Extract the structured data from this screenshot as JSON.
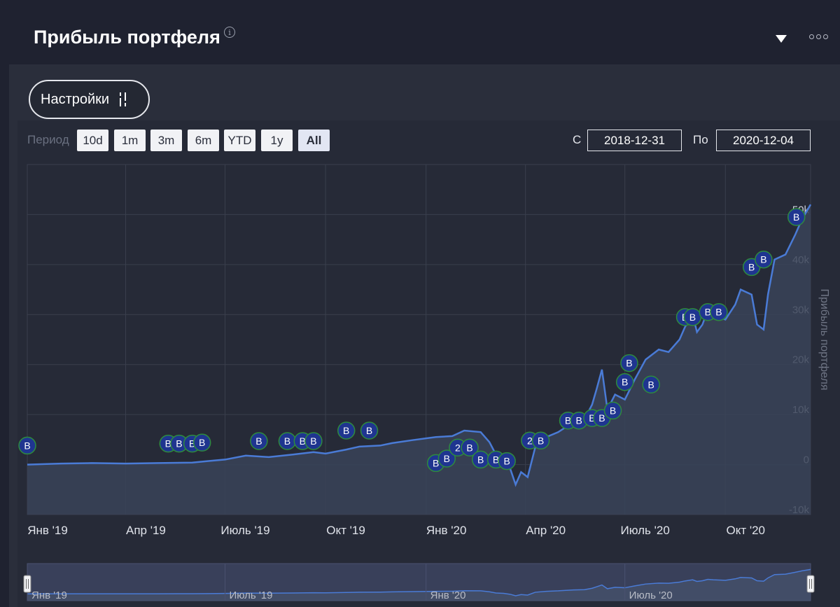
{
  "header": {
    "title": "Прибыль портфеля",
    "info_icon": "info-icon",
    "dropdown_icon": "dropdown-icon",
    "more_icon": "more-icon"
  },
  "settings": {
    "label": "Настройки",
    "icon": "sliders-icon"
  },
  "period": {
    "label": "Период",
    "buttons": [
      "10d",
      "1m",
      "3m",
      "6m",
      "YTD",
      "1y",
      "All"
    ],
    "active": "All"
  },
  "range": {
    "from_label": "С",
    "from": "2018-12-31",
    "to_label": "По",
    "to": "2020-12-04"
  },
  "colors": {
    "line": "#4a7bd6",
    "area": "#3a4358",
    "marker": "#1f3590",
    "marker_border": "#2e8b3e"
  },
  "chart_data": {
    "type": "area",
    "ylabel": "Прибыль портфеля",
    "ylim": [
      -10000,
      60000
    ],
    "yticks": [
      -10000,
      0,
      10000,
      20000,
      30000,
      40000,
      50000
    ],
    "ytick_labels": [
      "-10k",
      "0",
      "10k",
      "20k",
      "30k",
      "40k",
      "50k"
    ],
    "xlim": [
      "2019-01-01",
      "2020-12-18"
    ],
    "xticks": [
      "2019-01-01",
      "2019-04-01",
      "2019-07-01",
      "2019-10-01",
      "2020-01-01",
      "2020-04-01",
      "2020-07-01",
      "2020-10-01"
    ],
    "xtick_labels": [
      "Янв '19",
      "Апр '19",
      "Июль '19",
      "Окт '19",
      "Янв '20",
      "Апр '20",
      "Июль '20",
      "Окт '20"
    ],
    "navigator_labels": [
      "Янв '19",
      "Июль '19",
      "Янв '20",
      "Июль '20"
    ],
    "grid": true,
    "series": [
      {
        "x": [
          "2019-01-01",
          "2019-02-01",
          "2019-03-01",
          "2019-04-01",
          "2019-05-01",
          "2019-06-01",
          "2019-06-15",
          "2019-07-01",
          "2019-07-20",
          "2019-08-10",
          "2019-09-01",
          "2019-09-20",
          "2019-10-01",
          "2019-10-20",
          "2019-11-01",
          "2019-11-20",
          "2019-12-01",
          "2019-12-20",
          "2020-01-10",
          "2020-01-25",
          "2020-02-05",
          "2020-02-20",
          "2020-02-28",
          "2020-03-05",
          "2020-03-12",
          "2020-03-18",
          "2020-03-23",
          "2020-03-28",
          "2020-04-03",
          "2020-04-10",
          "2020-04-20",
          "2020-05-01",
          "2020-05-15",
          "2020-05-25",
          "2020-06-01",
          "2020-06-05",
          "2020-06-10",
          "2020-06-15",
          "2020-06-22",
          "2020-07-01",
          "2020-07-10",
          "2020-07-20",
          "2020-08-01",
          "2020-08-10",
          "2020-08-20",
          "2020-08-25",
          "2020-09-01",
          "2020-09-05",
          "2020-09-10",
          "2020-09-15",
          "2020-09-20",
          "2020-10-01",
          "2020-10-10",
          "2020-10-15",
          "2020-10-25",
          "2020-10-30",
          "2020-11-05",
          "2020-11-09",
          "2020-11-15",
          "2020-11-25",
          "2020-12-04",
          "2020-12-10",
          "2020-12-18"
        ],
        "values": [
          0,
          200,
          300,
          200,
          300,
          400,
          700,
          1000,
          1800,
          1500,
          2000,
          2500,
          2200,
          3000,
          3600,
          3800,
          4300,
          4900,
          5500,
          5700,
          6800,
          6500,
          4500,
          2000,
          1200,
          -800,
          -4000,
          -1500,
          -2500,
          3500,
          5500,
          6500,
          8500,
          9000,
          12000,
          15000,
          19000,
          11000,
          14000,
          13000,
          17000,
          21000,
          23000,
          22500,
          25000,
          27500,
          30000,
          26500,
          28000,
          31000,
          30000,
          29000,
          32000,
          35000,
          34000,
          28000,
          27000,
          34000,
          41000,
          42000,
          46000,
          49000,
          52000
        ]
      }
    ],
    "annotations": [
      {
        "label": "B",
        "x": "2019-01-01",
        "y": 3800
      },
      {
        "label": "B",
        "x": "2019-05-10",
        "y": 4200
      },
      {
        "label": "B",
        "x": "2019-05-20",
        "y": 4200
      },
      {
        "label": "B",
        "x": "2019-06-01",
        "y": 4200
      },
      {
        "label": "B",
        "x": "2019-06-10",
        "y": 4400
      },
      {
        "label": "B",
        "x": "2019-08-01",
        "y": 4700
      },
      {
        "label": "B",
        "x": "2019-08-27",
        "y": 4700
      },
      {
        "label": "B",
        "x": "2019-09-10",
        "y": 4700
      },
      {
        "label": "B",
        "x": "2019-09-20",
        "y": 4700
      },
      {
        "label": "B",
        "x": "2019-10-20",
        "y": 6800
      },
      {
        "label": "B",
        "x": "2019-11-10",
        "y": 6800
      },
      {
        "label": "B",
        "x": "2020-01-10",
        "y": 300
      },
      {
        "label": "B",
        "x": "2020-01-20",
        "y": 1200
      },
      {
        "label": "2",
        "x": "2020-01-30",
        "y": 3400
      },
      {
        "label": "B",
        "x": "2020-02-10",
        "y": 3400
      },
      {
        "label": "B",
        "x": "2020-02-20",
        "y": 1000
      },
      {
        "label": "B",
        "x": "2020-03-05",
        "y": 1000
      },
      {
        "label": "B",
        "x": "2020-03-15",
        "y": 700
      },
      {
        "label": "2",
        "x": "2020-04-05",
        "y": 4800
      },
      {
        "label": "B",
        "x": "2020-04-15",
        "y": 4800
      },
      {
        "label": "B",
        "x": "2020-05-10",
        "y": 8800
      },
      {
        "label": "B",
        "x": "2020-05-20",
        "y": 8800
      },
      {
        "label": "B",
        "x": "2020-06-01",
        "y": 9300
      },
      {
        "label": "B",
        "x": "2020-06-10",
        "y": 9300
      },
      {
        "label": "B",
        "x": "2020-06-20",
        "y": 10800
      },
      {
        "label": "B",
        "x": "2020-07-01",
        "y": 16500
      },
      {
        "label": "B",
        "x": "2020-07-05",
        "y": 20300
      },
      {
        "label": "B",
        "x": "2020-07-25",
        "y": 16000
      },
      {
        "label": "B",
        "x": "2020-08-25",
        "y": 29500
      },
      {
        "label": "B",
        "x": "2020-09-01",
        "y": 29500
      },
      {
        "label": "B",
        "x": "2020-09-15",
        "y": 30500
      },
      {
        "label": "B",
        "x": "2020-09-25",
        "y": 30500
      },
      {
        "label": "B",
        "x": "2020-10-25",
        "y": 39500
      },
      {
        "label": "B",
        "x": "2020-11-05",
        "y": 41000
      },
      {
        "label": "B",
        "x": "2020-12-05",
        "y": 49500
      }
    ]
  }
}
